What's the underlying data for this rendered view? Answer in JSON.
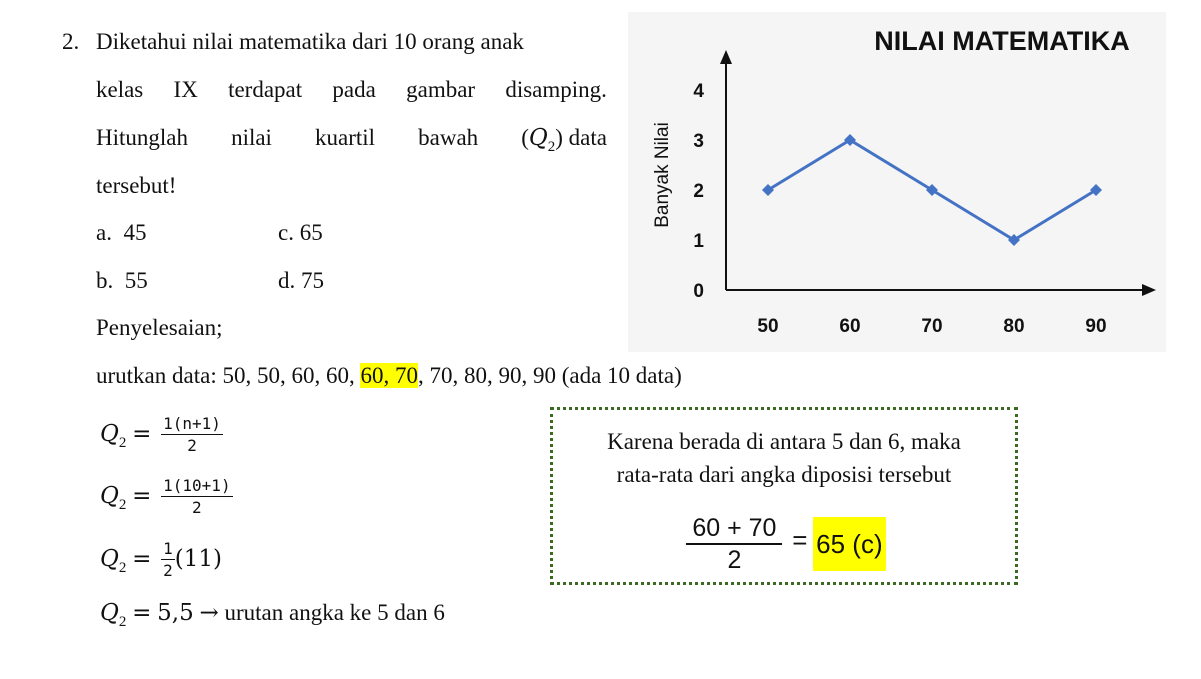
{
  "problem": {
    "number": "2.",
    "line1": "Diketahui nilai matematika dari 10 orang anak",
    "line2_words": [
      "kelas",
      "IX",
      "terdapat",
      "pada",
      "gambar",
      "disamping."
    ],
    "line3_words": [
      "Hitunglah",
      "nilai",
      "kuartil",
      "bawah"
    ],
    "line3_math": "(Q₂) data",
    "line4": "tersebut!"
  },
  "options": [
    {
      "label": "a.",
      "value": "45"
    },
    {
      "label": "c.",
      "value": "65"
    },
    {
      "label": "b.",
      "value": "55"
    },
    {
      "label": "d.",
      "value": "75"
    }
  ],
  "solution": {
    "heading": "Penyelesaian;",
    "sorted_prefix": "urutkan data: 50, 50, 60, 60, ",
    "sorted_highlight": "60, 70",
    "sorted_suffix": ", 70, 80, 90, 90  (ada 10 data)",
    "q_symbol": "Q",
    "q_sub": "2",
    "eq": "=",
    "step1_num": "1(n+1)",
    "step1_den": "2",
    "step2_num": "1(10+1)",
    "step2_den": "2",
    "step3_num": "1",
    "step3_den": "2",
    "step3_rest": "(11)",
    "step4_value": "5,5",
    "step4_arrow": "→",
    "step4_text": "urutan angka ke 5 dan 6"
  },
  "box": {
    "line1": "Karena berada di antara 5 dan 6, maka",
    "line2": "rata-rata dari angka diposisi tersebut",
    "frac_num": "60 + 70",
    "frac_den": "2",
    "eq": "=",
    "answer": "65 (c)"
  },
  "chart_data": {
    "type": "line",
    "title": "NILAI MATEMATIKA",
    "xlabel": "",
    "ylabel": "Banyak Nilai",
    "x": [
      50,
      60,
      70,
      80,
      90
    ],
    "y": [
      2,
      3,
      2,
      1,
      2
    ],
    "yticks": [
      0,
      1,
      2,
      3,
      4
    ],
    "ylim": [
      0,
      4
    ],
    "line_color": "#4472c4",
    "grid": false
  },
  "colors": {
    "highlight": "#ffff00",
    "box_border": "#3a6b20",
    "chart_background": "#f5f5f5"
  }
}
